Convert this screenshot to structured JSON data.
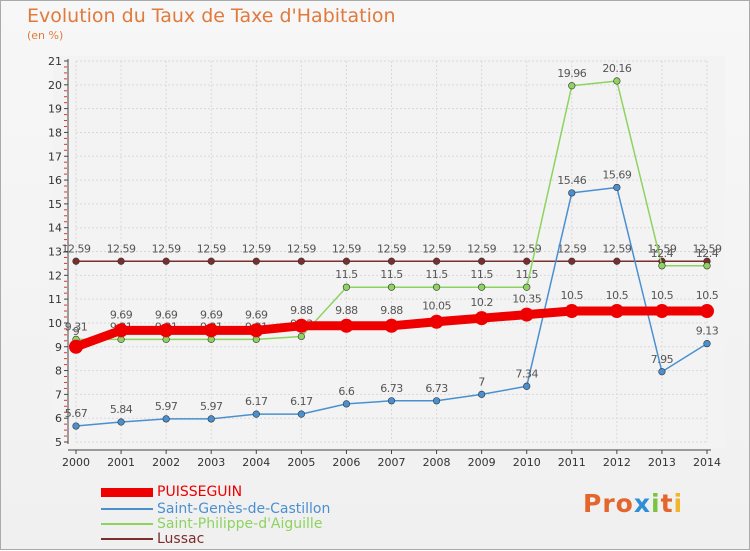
{
  "header": {
    "title": "Evolution du Taux de Taxe d'Habitation",
    "subtitle": "(en %)"
  },
  "chart_data": {
    "type": "line",
    "title": "Evolution du Taux de Taxe d'Habitation",
    "ylabel": "(en %)",
    "ylim": [
      5,
      21
    ],
    "yticks": [
      5,
      6,
      7,
      8,
      9,
      10,
      11,
      12,
      13,
      14,
      15,
      16,
      17,
      18,
      19,
      20,
      21
    ],
    "x": [
      2000,
      2001,
      2002,
      2003,
      2004,
      2005,
      2006,
      2007,
      2008,
      2009,
      2010,
      2011,
      2012,
      2013,
      2014
    ],
    "grid": true,
    "legend_placement": "bottom-left",
    "series": [
      {
        "name": "Lussac",
        "color": "#7a2e2e",
        "values": [
          12.59,
          12.59,
          12.59,
          12.59,
          12.59,
          12.59,
          12.59,
          12.59,
          12.59,
          12.59,
          12.59,
          12.59,
          12.59,
          12.59,
          12.59
        ],
        "labels": [
          "12.59",
          "12.59",
          "12.59",
          "12.59",
          "12.59",
          "12.59",
          "12.59",
          "12.59",
          "12.59",
          "12.59",
          "12.59",
          "12.59",
          "12.59",
          "12.59",
          "12.59"
        ]
      },
      {
        "name": "Saint-Philippe-d'Aiguille",
        "color": "#8dd35f",
        "values": [
          9.31,
          9.31,
          9.31,
          9.31,
          9.31,
          9.43,
          11.5,
          11.5,
          11.5,
          11.5,
          11.5,
          19.96,
          20.16,
          12.4,
          12.4
        ],
        "labels": [
          "9.31",
          "9.31",
          "9.31",
          "9.31",
          "9.31",
          "9.43",
          "11.5",
          "11.5",
          "11.5",
          "11.5",
          "11.5",
          "19.96",
          "20.16",
          "12.4",
          "12.4"
        ]
      },
      {
        "name": "Saint-Genès-de-Castillon",
        "color": "#4a90d0",
        "values": [
          5.67,
          5.84,
          5.97,
          5.97,
          6.17,
          6.17,
          6.6,
          6.73,
          6.73,
          7,
          7.34,
          15.46,
          15.69,
          7.95,
          9.13
        ],
        "labels": [
          "5.67",
          "5.84",
          "5.97",
          "5.97",
          "6.17",
          "6.17",
          "6.6",
          "6.73",
          "6.73",
          "7",
          "7.34",
          "15.46",
          "15.69",
          "7.95",
          "9.13"
        ]
      },
      {
        "name": "PUISSEGUIN",
        "color": "#ee0000",
        "values": [
          9,
          9.69,
          9.69,
          9.69,
          9.69,
          9.88,
          9.88,
          9.88,
          10.05,
          10.2,
          10.35,
          10.5,
          10.5,
          10.5,
          10.5
        ],
        "labels": [
          "9",
          "9.69",
          "9.69",
          "9.69",
          "9.69",
          "9.88",
          "9.88",
          "9.88",
          "10.05",
          "10.2",
          "10.35",
          "10.5",
          "10.5",
          "10.5",
          "10.5"
        ]
      }
    ]
  },
  "legend": {
    "items": [
      {
        "label": "PUISSEGUIN",
        "color": "#ee0000"
      },
      {
        "label": "Saint-Genès-de-Castillon",
        "color": "#4a90d0"
      },
      {
        "label": "Saint-Philippe-d'Aiguille",
        "color": "#8dd35f"
      },
      {
        "label": "Lussac",
        "color": "#7a2e2e"
      }
    ]
  },
  "logo": {
    "text": "Proxiti"
  }
}
